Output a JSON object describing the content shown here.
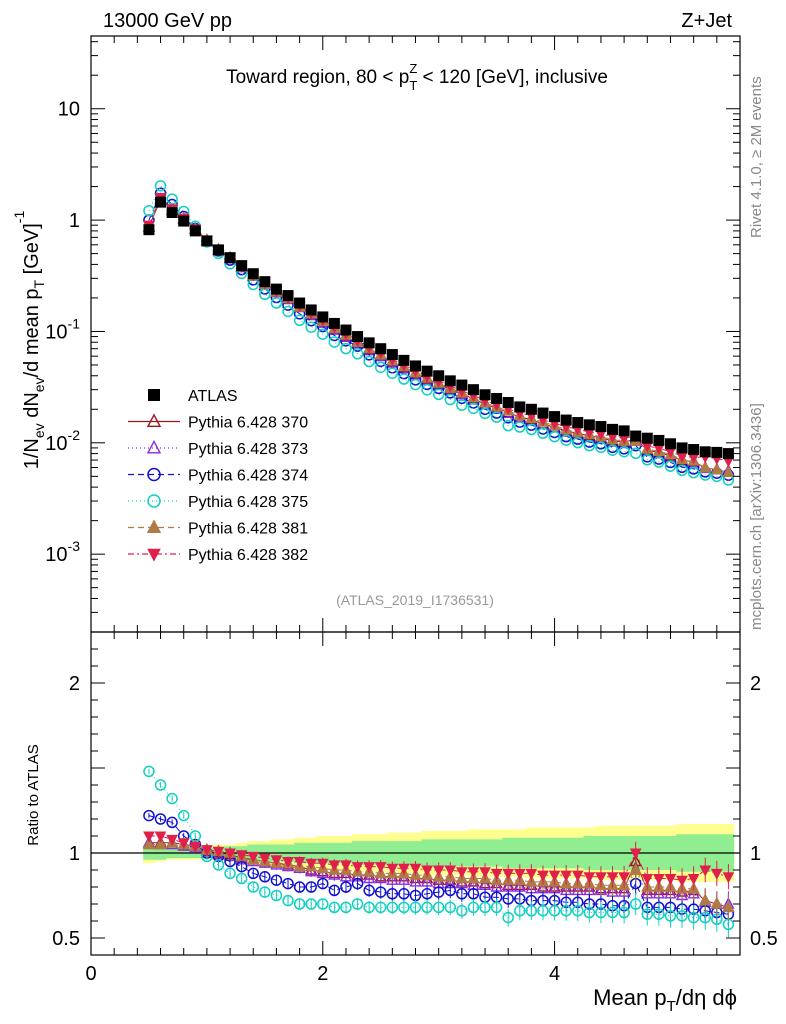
{
  "header": {
    "left": "13000 GeV pp",
    "right": "Z+Jet"
  },
  "side_text": {
    "rivet": "Rivet 4.1.0, ≥ 2M events",
    "mcplots": "mcplots.cern.ch [arXiv:1306.3436]"
  },
  "chart_data": {
    "type": "scatter",
    "title": "Toward region, 80 < p_T^Z < 120 [GeV], inclusive",
    "title_parts": {
      "pre": "Toward region, 80 < p",
      "sup": "Z",
      "sub": "T",
      "post": " < 120 [GeV], inclusive"
    },
    "analysis_id": "(ATLAS_2019_I1736531)",
    "xlabel": "Mean p_T/dη dϕ",
    "xlabel_parts": {
      "pre": "Mean p",
      "sub": "T",
      "post": "/dη dϕ"
    },
    "ylabel": "1/N_ev dN_ev/d mean p_T [GeV]^-1",
    "ylabel_parts": [
      {
        "t": "1/N",
        "s": ""
      },
      {
        "t": "ev",
        "s": "sub"
      },
      {
        "t": " dN",
        "s": ""
      },
      {
        "t": "ev",
        "s": "sub"
      },
      {
        "t": "/d mean p",
        "s": ""
      },
      {
        "t": "T",
        "s": "sub"
      },
      {
        "t": " [GeV]",
        "s": ""
      },
      {
        "t": "-1",
        "s": "sup"
      }
    ],
    "xlim": [
      0,
      5.6
    ],
    "ylim": [
      0.0002,
      45
    ],
    "yscale": "log",
    "x_ticks": [
      "0",
      "2",
      "4"
    ],
    "y_ticks": [
      {
        "value": 0.001,
        "base": "10",
        "exp": "-3"
      },
      {
        "value": 0.01,
        "base": "10",
        "exp": "-2"
      },
      {
        "value": 0.1,
        "base": "10",
        "exp": "-1"
      },
      {
        "value": 1,
        "base": "1",
        "exp": ""
      },
      {
        "value": 10,
        "base": "10",
        "exp": ""
      }
    ],
    "x": [
      0.5,
      0.6,
      0.7,
      0.8,
      0.9,
      1.0,
      1.1,
      1.2,
      1.3,
      1.4,
      1.5,
      1.6,
      1.7,
      1.8,
      1.9,
      2.0,
      2.1,
      2.2,
      2.3,
      2.4,
      2.5,
      2.6,
      2.7,
      2.8,
      2.9,
      3.0,
      3.1,
      3.2,
      3.3,
      3.4,
      3.5,
      3.6,
      3.7,
      3.8,
      3.9,
      4.0,
      4.1,
      4.2,
      4.3,
      4.4,
      4.5,
      4.6,
      4.7,
      4.8,
      4.9,
      5.0,
      5.1,
      5.2,
      5.3,
      5.4,
      5.5
    ],
    "series": [
      {
        "name": "ATLAS",
        "label": "ATLAS",
        "marker": "square",
        "color": "#000000",
        "dash": "none",
        "values": [
          0.82,
          1.45,
          1.17,
          0.98,
          0.8,
          0.65,
          0.54,
          0.46,
          0.39,
          0.33,
          0.28,
          0.24,
          0.21,
          0.18,
          0.156,
          0.135,
          0.118,
          0.103,
          0.09,
          0.079,
          0.07,
          0.062,
          0.055,
          0.049,
          0.044,
          0.04,
          0.036,
          0.033,
          0.03,
          0.027,
          0.025,
          0.023,
          0.021,
          0.02,
          0.0185,
          0.0172,
          0.016,
          0.0152,
          0.0145,
          0.014,
          0.0132,
          0.0128,
          0.0115,
          0.011,
          0.0105,
          0.0098,
          0.009,
          0.0087,
          0.0083,
          0.0082,
          0.008
        ]
      },
      {
        "name": "Pythia 6.428 370",
        "label": "Pythia 6.428 370",
        "marker": "triangle-up-open",
        "color": "#a0141e",
        "dash": "none",
        "ratio": [
          1.06,
          1.06,
          1.06,
          1.05,
          1.04,
          1.01,
          1.0,
          0.99,
          0.97,
          0.96,
          0.95,
          0.94,
          0.93,
          0.92,
          0.9,
          0.89,
          0.88,
          0.88,
          0.87,
          0.87,
          0.86,
          0.86,
          0.86,
          0.85,
          0.85,
          0.84,
          0.84,
          0.83,
          0.83,
          0.82,
          0.82,
          0.81,
          0.81,
          0.81,
          0.8,
          0.8,
          0.8,
          0.8,
          0.8,
          0.79,
          0.79,
          0.79,
          0.95,
          0.78,
          0.78,
          0.78,
          0.77,
          0.78,
          0.72,
          0.7,
          0.68
        ]
      },
      {
        "name": "Pythia 6.428 373",
        "label": "Pythia 6.428 373",
        "marker": "triangle-up-open",
        "color": "#8a2be2",
        "dash": "1,3",
        "ratio": [
          1.06,
          1.05,
          1.05,
          1.04,
          1.03,
          1.0,
          0.99,
          0.98,
          0.96,
          0.95,
          0.94,
          0.93,
          0.92,
          0.91,
          0.89,
          0.88,
          0.87,
          0.86,
          0.86,
          0.85,
          0.85,
          0.84,
          0.84,
          0.83,
          0.83,
          0.82,
          0.82,
          0.82,
          0.81,
          0.81,
          0.8,
          0.8,
          0.8,
          0.79,
          0.79,
          0.79,
          0.78,
          0.78,
          0.78,
          0.78,
          0.77,
          0.77,
          0.9,
          0.76,
          0.76,
          0.76,
          0.75,
          0.76,
          0.71,
          0.7,
          0.7
        ]
      },
      {
        "name": "Pythia 6.428 374",
        "label": "Pythia 6.428 374",
        "marker": "circle-open",
        "color": "#1010d0",
        "dash": "6,4",
        "ratio": [
          1.22,
          1.2,
          1.18,
          1.1,
          1.05,
          1.0,
          0.98,
          0.95,
          0.92,
          0.88,
          0.86,
          0.84,
          0.82,
          0.8,
          0.8,
          0.82,
          0.78,
          0.8,
          0.82,
          0.78,
          0.77,
          0.76,
          0.76,
          0.75,
          0.76,
          0.77,
          0.78,
          0.76,
          0.76,
          0.74,
          0.74,
          0.73,
          0.73,
          0.72,
          0.72,
          0.72,
          0.71,
          0.71,
          0.7,
          0.7,
          0.69,
          0.69,
          0.82,
          0.68,
          0.68,
          0.68,
          0.67,
          0.67,
          0.66,
          0.65,
          0.64
        ]
      },
      {
        "name": "Pythia 6.428 375",
        "label": "Pythia 6.428 375",
        "marker": "circle-open",
        "color": "#10d0c0",
        "dash": "1,3",
        "ratio": [
          1.48,
          1.4,
          1.32,
          1.22,
          1.1,
          0.98,
          0.93,
          0.88,
          0.85,
          0.8,
          0.77,
          0.75,
          0.72,
          0.7,
          0.7,
          0.7,
          0.68,
          0.68,
          0.7,
          0.68,
          0.68,
          0.68,
          0.68,
          0.68,
          0.68,
          0.68,
          0.68,
          0.66,
          0.68,
          0.68,
          0.68,
          0.62,
          0.66,
          0.66,
          0.66,
          0.66,
          0.66,
          0.66,
          0.65,
          0.65,
          0.65,
          0.65,
          0.7,
          0.64,
          0.64,
          0.63,
          0.63,
          0.62,
          0.62,
          0.61,
          0.58
        ]
      },
      {
        "name": "Pythia 6.428 381",
        "label": "Pythia 6.428 381",
        "marker": "triangle-up-filled",
        "color": "#b07a45",
        "dash": "6,4",
        "ratio": [
          1.05,
          1.05,
          1.06,
          1.05,
          1.04,
          1.02,
          1.01,
          1.0,
          0.98,
          0.96,
          0.95,
          0.94,
          0.94,
          0.92,
          0.92,
          0.91,
          0.9,
          0.9,
          0.89,
          0.89,
          0.88,
          0.88,
          0.88,
          0.87,
          0.87,
          0.86,
          0.86,
          0.85,
          0.85,
          0.85,
          0.84,
          0.84,
          0.84,
          0.83,
          0.83,
          0.83,
          0.82,
          0.82,
          0.82,
          0.81,
          0.81,
          0.81,
          0.9,
          0.8,
          0.8,
          0.8,
          0.79,
          0.79,
          0.72,
          0.7,
          0.68
        ]
      },
      {
        "name": "Pythia 6.428 382",
        "label": "Pythia 6.428 382",
        "marker": "triangle-down-filled",
        "color": "#e0204a",
        "dash": "6,3,2,3",
        "ratio": [
          1.1,
          1.1,
          1.08,
          1.06,
          1.04,
          1.02,
          1.01,
          1.0,
          0.99,
          0.98,
          0.97,
          0.96,
          0.95,
          0.95,
          0.94,
          0.94,
          0.93,
          0.93,
          0.92,
          0.92,
          0.92,
          0.91,
          0.91,
          0.91,
          0.9,
          0.9,
          0.9,
          0.89,
          0.89,
          0.89,
          0.88,
          0.88,
          0.88,
          0.88,
          0.87,
          0.87,
          0.87,
          0.87,
          0.86,
          0.86,
          0.86,
          0.86,
          1.0,
          0.85,
          0.85,
          0.85,
          0.84,
          0.85,
          0.9,
          0.88,
          0.86
        ]
      }
    ],
    "ratio_panel": {
      "ylabel": "Ratio to ATLAS",
      "ylim": [
        0.4,
        2.3
      ],
      "y_ticks": [
        "0.5",
        "1",
        "2"
      ],
      "band_inner": [
        0.96,
        0.96,
        0.97,
        0.97,
        0.97,
        0.97,
        0.97,
        0.96,
        0.96,
        0.95,
        0.95,
        0.95,
        0.95,
        0.94,
        0.94,
        0.94,
        0.94,
        0.94,
        0.93,
        0.93,
        0.93,
        0.93,
        0.93,
        0.93,
        0.92,
        0.92,
        0.92,
        0.92,
        0.92,
        0.92,
        0.92,
        0.91,
        0.91,
        0.91,
        0.91,
        0.91,
        0.91,
        0.91,
        0.9,
        0.9,
        0.9,
        0.9,
        0.9,
        0.9,
        0.9,
        0.9,
        0.89,
        0.89,
        0.89,
        0.89,
        0.89
      ],
      "band_outer": [
        0.94,
        0.95,
        0.96,
        0.96,
        0.96,
        0.96,
        0.95,
        0.95,
        0.94,
        0.93,
        0.93,
        0.92,
        0.92,
        0.91,
        0.91,
        0.9,
        0.9,
        0.9,
        0.89,
        0.89,
        0.89,
        0.88,
        0.88,
        0.88,
        0.87,
        0.87,
        0.87,
        0.87,
        0.86,
        0.86,
        0.86,
        0.86,
        0.86,
        0.85,
        0.85,
        0.85,
        0.85,
        0.85,
        0.85,
        0.84,
        0.84,
        0.84,
        0.84,
        0.84,
        0.84,
        0.84,
        0.83,
        0.83,
        0.83,
        0.83,
        0.83
      ],
      "band_inner_color": "#90ee90",
      "band_outer_color": "#ffff90"
    }
  }
}
